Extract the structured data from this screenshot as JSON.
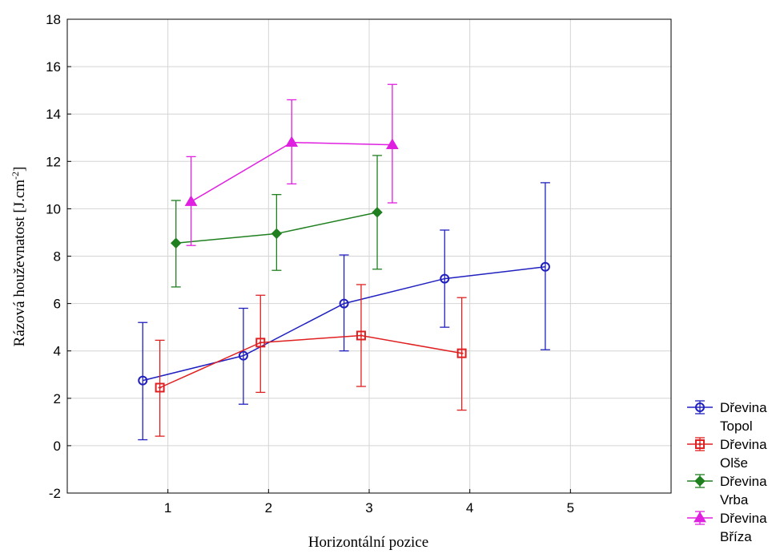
{
  "chart_data": {
    "type": "line",
    "title": "",
    "xlabel": "Horizontální pozice",
    "ylabel": "Rázová houževnatost [J.cm",
    "ylabel_sup": "-2",
    "ylabel_end": "]",
    "xlim": [
      0,
      6
    ],
    "ylim": [
      -2,
      18
    ],
    "x_ticks": [
      "1",
      "2",
      "3",
      "4",
      "5"
    ],
    "y_ticks": [
      "-2",
      "0",
      "2",
      "4",
      "6",
      "8",
      "10",
      "12",
      "14",
      "16",
      "18"
    ],
    "grid": true,
    "legend_position": "bottom-right",
    "series": [
      {
        "legend_line1": "Dřevina",
        "legend_line2": "Topol",
        "color": "#2020c0",
        "marker": "circle",
        "x_offset": -0.25,
        "x": [
          1,
          2,
          3,
          4,
          5
        ],
        "values": [
          2.75,
          3.8,
          6.0,
          7.05,
          7.55
        ],
        "err_low": [
          0.25,
          1.75,
          4.0,
          5.0,
          4.05
        ],
        "err_high": [
          5.2,
          5.8,
          8.05,
          9.1,
          11.1
        ]
      },
      {
        "legend_line1": "Dřevina",
        "legend_line2": "Olše",
        "color": "#e02020",
        "marker": "square",
        "x_offset": -0.08,
        "x": [
          1,
          2,
          3,
          4
        ],
        "values": [
          2.45,
          4.35,
          4.65,
          3.9
        ],
        "err_low": [
          0.4,
          2.25,
          2.5,
          1.5
        ],
        "err_high": [
          4.45,
          6.35,
          6.8,
          6.25
        ]
      },
      {
        "legend_line1": "Dřevina",
        "legend_line2": "Vrba",
        "color": "#208020",
        "marker": "diamond",
        "x_offset": 0.08,
        "x": [
          1,
          2,
          3
        ],
        "values": [
          8.55,
          8.95,
          9.85
        ],
        "err_low": [
          6.7,
          7.4,
          7.45
        ],
        "err_high": [
          10.35,
          10.6,
          12.25
        ]
      },
      {
        "legend_line1": "Dřevina",
        "legend_line2": "Bříza",
        "color": "#e020e0",
        "marker": "triangle",
        "x_offset": 0.23,
        "x": [
          1,
          2,
          3
        ],
        "values": [
          10.3,
          12.8,
          12.7
        ],
        "err_low": [
          8.45,
          11.05,
          10.25
        ],
        "err_high": [
          12.2,
          14.6,
          15.25
        ]
      }
    ]
  }
}
